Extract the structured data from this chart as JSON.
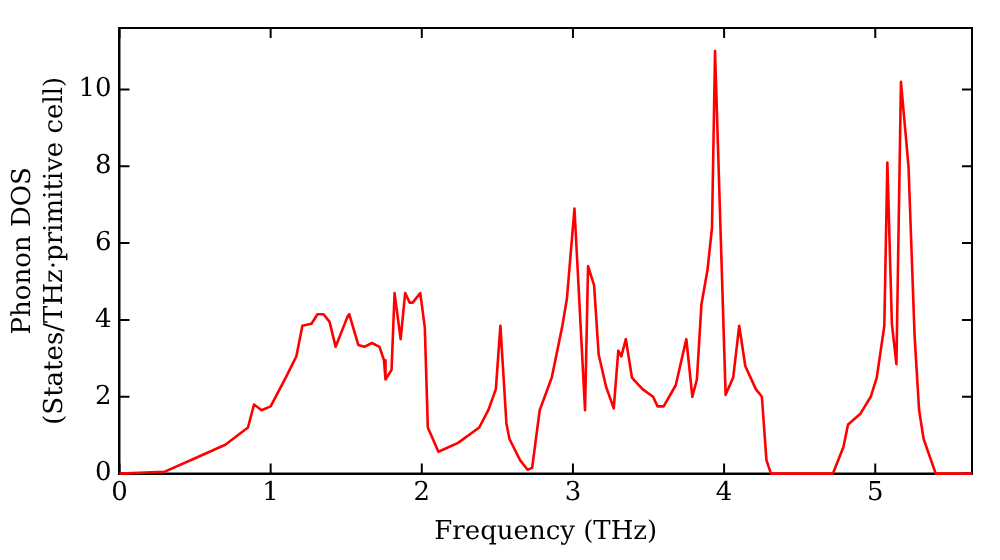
{
  "chart_data": {
    "type": "line",
    "xlabel": "Frequency (THz)",
    "ylabel": "Phonon DOS\n(States/THz·primitive cell)",
    "xlim": [
      0,
      5.64
    ],
    "ylim": [
      0,
      11.6
    ],
    "xticks": [
      0,
      1,
      2,
      3,
      4,
      5
    ],
    "yticks": [
      0,
      2,
      4,
      6,
      8,
      10
    ],
    "grid": false,
    "legend": false,
    "marker": "none",
    "line_style": "solid",
    "series": [
      {
        "color": "#ff0000",
        "x": [
          0,
          0.3,
          0.5,
          0.7,
          0.85,
          0.89,
          0.94,
          1.0,
          1.1,
          1.17,
          1.21,
          1.27,
          1.31,
          1.35,
          1.39,
          1.43,
          1.51,
          1.52,
          1.58,
          1.62,
          1.67,
          1.72,
          1.75,
          1.76,
          1.8,
          1.82,
          1.86,
          1.89,
          1.92,
          1.94,
          1.99,
          2.02,
          2.04,
          2.11,
          2.24,
          2.38,
          2.44,
          2.49,
          2.52,
          2.56,
          2.58,
          2.65,
          2.7,
          2.73,
          2.78,
          2.86,
          2.93,
          2.96,
          3.01,
          3.08,
          3.1,
          3.14,
          3.17,
          3.22,
          3.27,
          3.3,
          3.32,
          3.35,
          3.39,
          3.46,
          3.53,
          3.56,
          3.6,
          3.68,
          3.75,
          3.79,
          3.82,
          3.85,
          3.89,
          3.92,
          3.94,
          4.01,
          4.06,
          4.1,
          4.14,
          4.21,
          4.25,
          4.28,
          4.31,
          4.72,
          4.79,
          4.82,
          4.9,
          4.97,
          5.01,
          5.06,
          5.08,
          5.11,
          5.14,
          5.17,
          5.22,
          5.26,
          5.29,
          5.32,
          5.4,
          5.64
        ],
        "values": [
          0,
          0.05,
          0.4,
          0.75,
          1.2,
          1.8,
          1.65,
          1.75,
          2.5,
          3.05,
          3.85,
          3.9,
          4.15,
          4.15,
          3.95,
          3.3,
          4.1,
          4.15,
          3.35,
          3.3,
          3.4,
          3.3,
          2.95,
          2.45,
          2.7,
          4.7,
          3.5,
          4.7,
          4.45,
          4.45,
          4.7,
          3.8,
          1.2,
          0.57,
          0.8,
          1.2,
          1.65,
          2.2,
          3.85,
          1.3,
          0.9,
          0.35,
          0.1,
          0.15,
          1.65,
          2.5,
          3.85,
          4.55,
          6.9,
          1.65,
          5.4,
          4.9,
          3.1,
          2.25,
          1.7,
          3.2,
          3.05,
          3.5,
          2.5,
          2.2,
          2.0,
          1.75,
          1.75,
          2.3,
          3.5,
          2.0,
          2.45,
          4.4,
          5.3,
          6.4,
          11.0,
          2.05,
          2.5,
          3.85,
          2.8,
          2.2,
          2.0,
          0.35,
          0,
          0,
          0.7,
          1.28,
          1.55,
          2.0,
          2.5,
          3.85,
          8.1,
          3.9,
          2.85,
          10.2,
          8.0,
          3.6,
          1.65,
          0.9,
          0,
          0
        ]
      }
    ]
  }
}
